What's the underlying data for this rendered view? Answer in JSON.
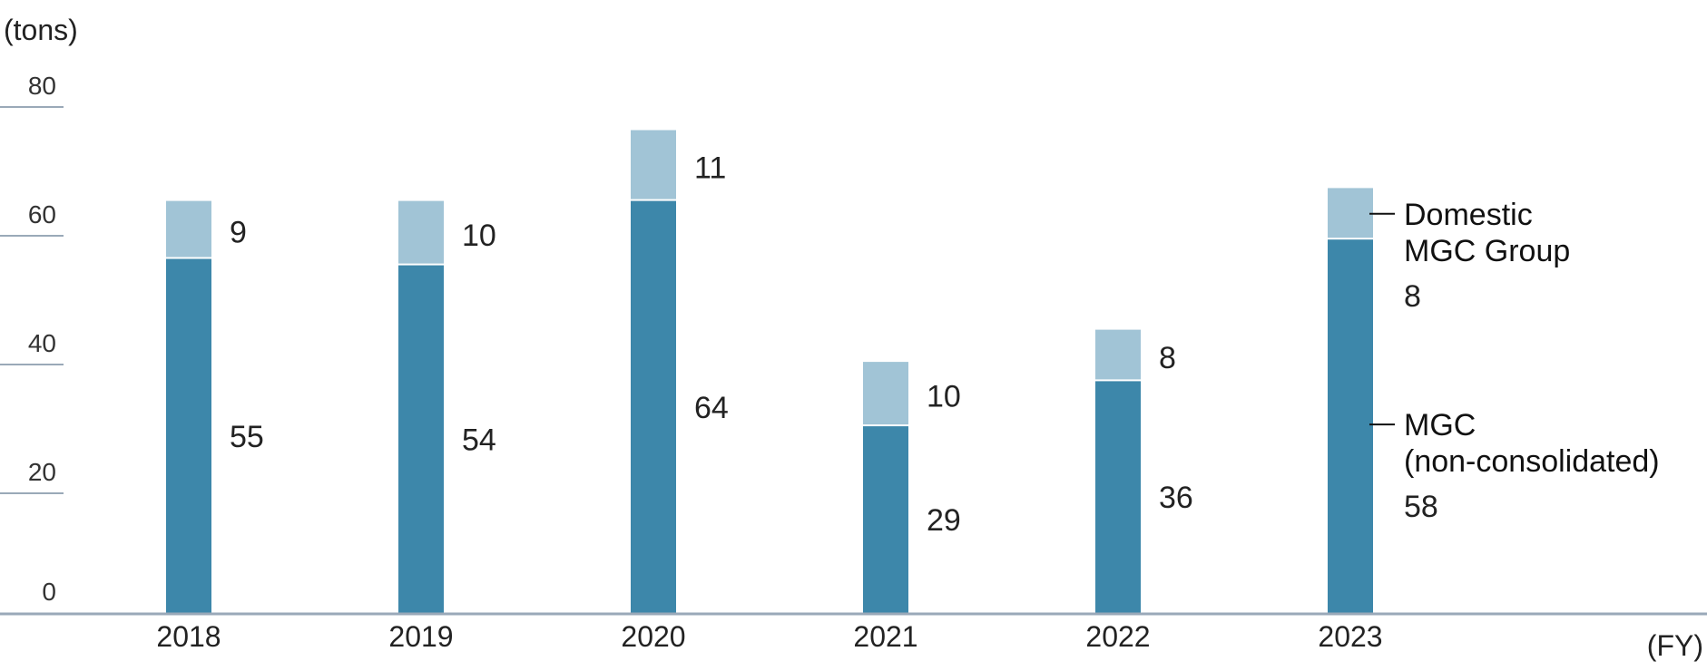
{
  "chart_data": {
    "type": "bar",
    "stacked": true,
    "unit_label": "(tons)",
    "xlabel": "(FY)",
    "categories": [
      "2018",
      "2019",
      "2020",
      "2021",
      "2022",
      "2023"
    ],
    "ylim": [
      0,
      80
    ],
    "yticks": [
      0,
      20,
      40,
      60,
      80
    ],
    "series": [
      {
        "name": "MGC (non-consolidated)",
        "legend_lines": [
          "MGC",
          "(non-consolidated)"
        ],
        "color": "#3d87aa",
        "values": [
          55,
          54,
          64,
          29,
          36,
          58
        ]
      },
      {
        "name": "Domestic MGC Group",
        "legend_lines": [
          "Domestic",
          "MGC Group"
        ],
        "color": "#a1c4d6",
        "values": [
          9,
          10,
          11,
          10,
          8,
          8
        ]
      }
    ]
  },
  "colors": {
    "axis": "#9aa9b8",
    "text": "#222222"
  }
}
